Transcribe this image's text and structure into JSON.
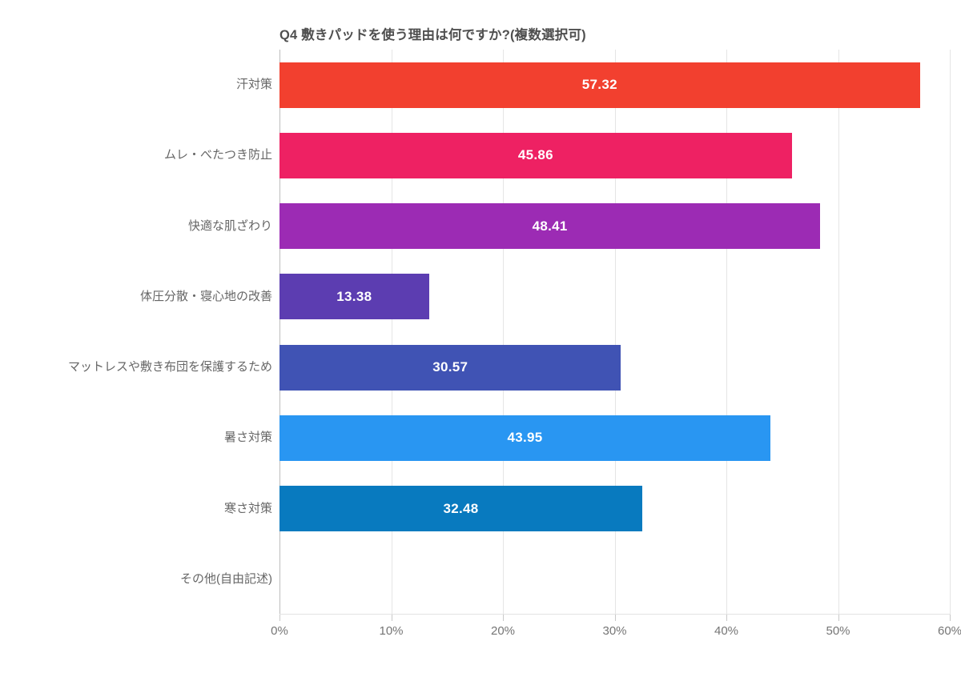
{
  "title": "Q4 敷きパッドを使う理由は何ですか?(複数選択可)",
  "chart_data": {
    "type": "bar",
    "orientation": "horizontal",
    "title": "Q4 敷きパッドを使う理由は何ですか?(複数選択可)",
    "categories": [
      "汗対策",
      "ムレ・べたつき防止",
      "快適な肌ざわり",
      "体圧分散・寝心地の改善",
      "マットレスや敷き布団を保護するため",
      "暑さ対策",
      "寒さ対策",
      "その他(自由記述)"
    ],
    "values": [
      57.32,
      45.86,
      48.41,
      13.38,
      30.57,
      43.95,
      32.48,
      0
    ],
    "value_labels": [
      "57.32",
      "45.86",
      "48.41",
      "13.38",
      "30.57",
      "43.95",
      "32.48",
      ""
    ],
    "bar_colors": [
      "#F2402F",
      "#EE2163",
      "#9C2BB4",
      "#5C3DB1",
      "#4053B4",
      "#2996F2",
      "#087ABF",
      "#CCCCCC"
    ],
    "xlabel": "",
    "ylabel": "",
    "xlim": [
      0,
      60
    ],
    "x_ticks": [
      "0%",
      "10%",
      "20%",
      "30%",
      "40%",
      "50%",
      "60%"
    ],
    "x_tick_values": [
      0,
      10,
      20,
      30,
      40,
      50,
      60
    ],
    "grid": "vertical",
    "legend": "none"
  },
  "colors": {
    "background": "#FFFFFF",
    "title_text": "#4F4F4F",
    "category_text": "#666666",
    "tick_text": "#757575",
    "value_text": "#FFFFFF",
    "gridline": "#E5E5E5",
    "axis_line": "#BDBDBD"
  }
}
